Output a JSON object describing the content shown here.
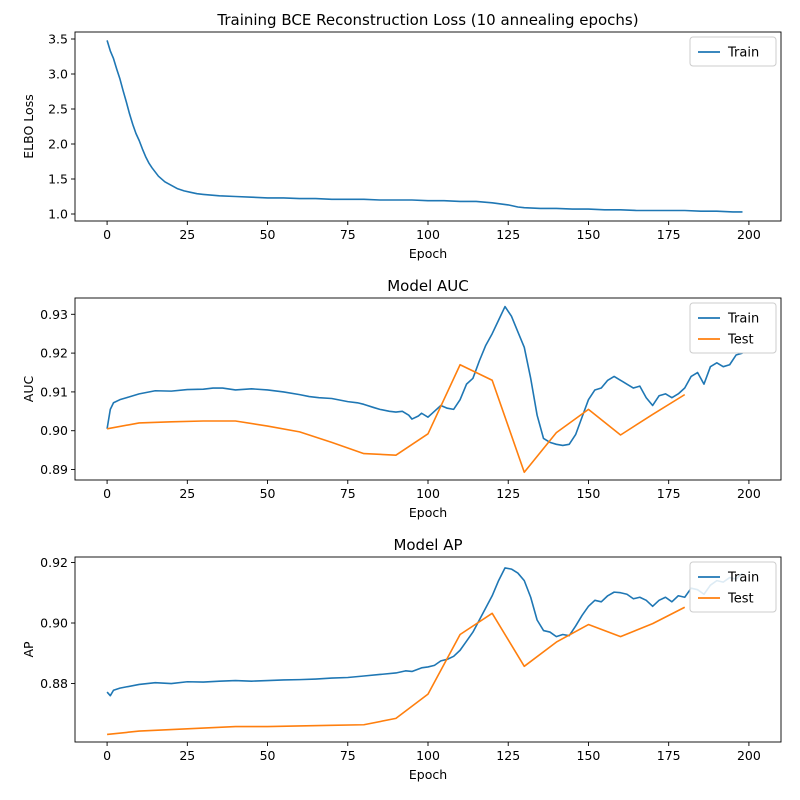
{
  "chart_data": [
    {
      "type": "line",
      "title": "Training BCE Reconstruction Loss (10 annealing epochs)",
      "xlabel": "Epoch",
      "ylabel": "ELBO Loss",
      "xlim": [
        -10,
        210
      ],
      "ylim": [
        0.9,
        3.6
      ],
      "xticks": [
        "0",
        "25",
        "50",
        "75",
        "100",
        "125",
        "150",
        "175",
        "200"
      ],
      "yticks": [
        "1.0",
        "1.5",
        "2.0",
        "2.5",
        "3.0",
        "3.5"
      ],
      "grid": false,
      "legend": "upper-right",
      "series": [
        {
          "name": "Train",
          "color": "#1f77b4",
          "x": [
            0,
            1,
            2,
            3,
            4,
            5,
            6,
            7,
            8,
            9,
            10,
            11,
            12,
            13,
            14,
            16,
            18,
            20,
            22,
            24,
            26,
            28,
            30,
            35,
            40,
            45,
            50,
            55,
            60,
            65,
            70,
            75,
            80,
            85,
            90,
            95,
            100,
            105,
            110,
            115,
            120,
            125,
            128,
            130,
            135,
            140,
            145,
            150,
            155,
            160,
            165,
            170,
            175,
            180,
            185,
            190,
            195,
            198
          ],
          "values": [
            3.48,
            3.33,
            3.22,
            3.07,
            2.93,
            2.76,
            2.6,
            2.43,
            2.28,
            2.15,
            2.05,
            1.93,
            1.82,
            1.73,
            1.66,
            1.54,
            1.46,
            1.41,
            1.36,
            1.33,
            1.31,
            1.29,
            1.28,
            1.26,
            1.25,
            1.24,
            1.23,
            1.23,
            1.22,
            1.22,
            1.21,
            1.21,
            1.21,
            1.2,
            1.2,
            1.2,
            1.19,
            1.19,
            1.18,
            1.18,
            1.16,
            1.13,
            1.1,
            1.09,
            1.08,
            1.08,
            1.07,
            1.07,
            1.06,
            1.06,
            1.05,
            1.05,
            1.05,
            1.05,
            1.04,
            1.04,
            1.03,
            1.03
          ]
        }
      ]
    },
    {
      "type": "line",
      "title": "Model AUC",
      "xlabel": "Epoch",
      "ylabel": "AUC",
      "xlim": [
        -10,
        210
      ],
      "ylim": [
        0.8873,
        0.9342
      ],
      "xticks": [
        "0",
        "25",
        "50",
        "75",
        "100",
        "125",
        "150",
        "175",
        "200"
      ],
      "yticks": [
        "0.89",
        "0.90",
        "0.91",
        "0.92",
        "0.93"
      ],
      "grid": false,
      "legend": "upper-right",
      "series": [
        {
          "name": "Train",
          "color": "#1f77b4",
          "x": [
            0,
            1,
            2,
            4,
            6,
            10,
            15,
            20,
            25,
            30,
            33,
            36,
            40,
            45,
            50,
            55,
            60,
            63,
            66,
            70,
            75,
            78,
            80,
            83,
            85,
            88,
            90,
            92,
            94,
            95,
            97,
            98,
            100,
            102,
            104,
            106,
            108,
            110,
            112,
            114,
            116,
            118,
            120,
            122,
            124,
            126,
            128,
            130,
            132,
            134,
            136,
            138,
            140,
            142,
            144,
            146,
            148,
            150,
            152,
            154,
            156,
            158,
            160,
            162,
            164,
            166,
            168,
            170,
            172,
            174,
            176,
            178,
            180,
            182,
            184,
            186,
            188,
            190,
            192,
            194,
            196,
            198
          ],
          "values": [
            0.9005,
            0.9055,
            0.9072,
            0.908,
            0.9085,
            0.9095,
            0.9103,
            0.9102,
            0.9106,
            0.9107,
            0.911,
            0.911,
            0.9105,
            0.9108,
            0.9105,
            0.91,
            0.9093,
            0.9088,
            0.9085,
            0.9083,
            0.9075,
            0.9072,
            0.9068,
            0.906,
            0.9055,
            0.905,
            0.9048,
            0.905,
            0.904,
            0.903,
            0.9038,
            0.9045,
            0.9035,
            0.905,
            0.9065,
            0.9058,
            0.9055,
            0.908,
            0.912,
            0.9135,
            0.918,
            0.922,
            0.925,
            0.9285,
            0.932,
            0.9295,
            0.9255,
            0.9215,
            0.9135,
            0.904,
            0.898,
            0.897,
            0.8965,
            0.8962,
            0.8965,
            0.899,
            0.9035,
            0.908,
            0.9105,
            0.911,
            0.913,
            0.914,
            0.913,
            0.912,
            0.911,
            0.9115,
            0.9085,
            0.9065,
            0.909,
            0.9095,
            0.9085,
            0.9095,
            0.911,
            0.914,
            0.915,
            0.912,
            0.9165,
            0.9175,
            0.9165,
            0.917,
            0.9195,
            0.92
          ]
        },
        {
          "name": "Test",
          "color": "#ff7f0e",
          "x": [
            0,
            10,
            20,
            30,
            40,
            50,
            60,
            70,
            80,
            90,
            100,
            110,
            120,
            130,
            140,
            150,
            160,
            170,
            180
          ],
          "values": [
            0.9005,
            0.902,
            0.9023,
            0.9025,
            0.9025,
            0.9012,
            0.8997,
            0.897,
            0.8941,
            0.8937,
            0.8992,
            0.917,
            0.913,
            0.8893,
            0.8995,
            0.9055,
            0.8989,
            0.9042,
            0.9093
          ]
        }
      ]
    },
    {
      "type": "line",
      "title": "Model AP",
      "xlabel": "Epoch",
      "ylabel": "AP",
      "xlim": [
        -10,
        210
      ],
      "ylim": [
        0.8607,
        0.9218
      ],
      "xticks": [
        "0",
        "25",
        "50",
        "75",
        "100",
        "125",
        "150",
        "175",
        "200"
      ],
      "yticks": [
        "0.88",
        "0.90",
        "0.92"
      ],
      "grid": false,
      "legend": "upper-right",
      "series": [
        {
          "name": "Train",
          "color": "#1f77b4",
          "x": [
            0,
            1,
            2,
            4,
            6,
            10,
            15,
            20,
            25,
            30,
            35,
            40,
            45,
            50,
            55,
            60,
            65,
            70,
            75,
            80,
            85,
            90,
            93,
            95,
            98,
            100,
            102,
            104,
            106,
            108,
            110,
            112,
            114,
            116,
            118,
            120,
            122,
            124,
            126,
            128,
            130,
            132,
            134,
            136,
            138,
            140,
            142,
            144,
            146,
            148,
            150,
            152,
            154,
            156,
            158,
            160,
            162,
            164,
            166,
            168,
            170,
            172,
            174,
            176,
            178,
            180,
            182,
            184,
            186,
            188,
            190,
            192,
            194,
            196,
            198
          ],
          "values": [
            0.8772,
            0.876,
            0.8778,
            0.8785,
            0.8789,
            0.8797,
            0.8803,
            0.88,
            0.8806,
            0.8805,
            0.8808,
            0.881,
            0.8808,
            0.881,
            0.8812,
            0.8813,
            0.8815,
            0.8818,
            0.882,
            0.8825,
            0.883,
            0.8835,
            0.8842,
            0.884,
            0.8852,
            0.8855,
            0.886,
            0.8875,
            0.888,
            0.889,
            0.891,
            0.894,
            0.897,
            0.901,
            0.905,
            0.909,
            0.914,
            0.9182,
            0.9178,
            0.9165,
            0.914,
            0.9085,
            0.901,
            0.8975,
            0.897,
            0.8955,
            0.8962,
            0.8958,
            0.899,
            0.9025,
            0.9055,
            0.9075,
            0.907,
            0.909,
            0.9102,
            0.91,
            0.9095,
            0.908,
            0.9085,
            0.9075,
            0.9055,
            0.9075,
            0.9085,
            0.907,
            0.909,
            0.9085,
            0.9115,
            0.911,
            0.9095,
            0.9125,
            0.914,
            0.9135,
            0.915,
            0.9145,
            0.9165
          ]
        },
        {
          "name": "Test",
          "color": "#ff7f0e",
          "x": [
            0,
            10,
            20,
            30,
            40,
            50,
            60,
            70,
            80,
            90,
            100,
            110,
            120,
            130,
            140,
            150,
            160,
            170,
            180
          ],
          "values": [
            0.8632,
            0.8643,
            0.8648,
            0.8653,
            0.8658,
            0.8658,
            0.866,
            0.8662,
            0.8664,
            0.8685,
            0.8765,
            0.8962,
            0.9032,
            0.8857,
            0.8937,
            0.8995,
            0.8955,
            0.8998,
            0.9052
          ]
        }
      ]
    }
  ]
}
